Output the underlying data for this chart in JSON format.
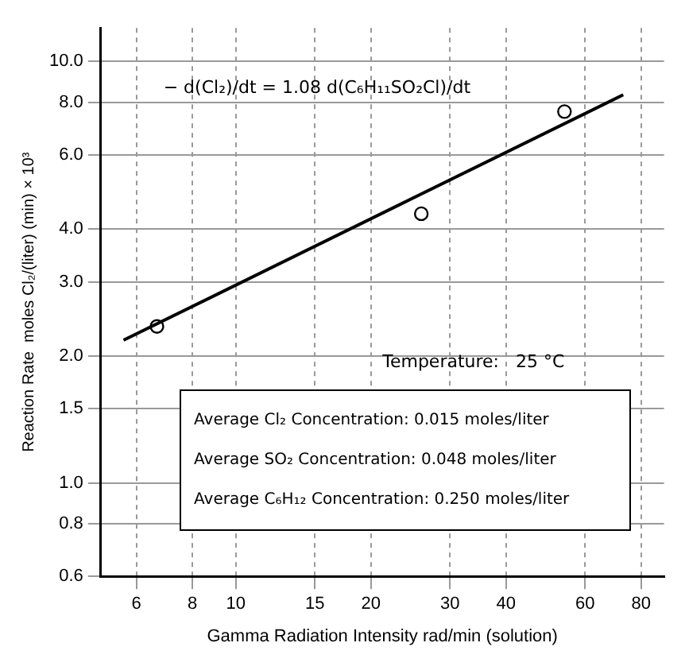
{
  "chart_data": {
    "type": "scatter",
    "xlabel": "Gamma Radiation Intensity rad/min (solution)",
    "ylabel": "Reaction Rate  moles Cl₂/(liter) (min) × 10³",
    "log": "xy",
    "grid": true,
    "legend": false,
    "marker": "circle",
    "xlim": [
      5,
      90
    ],
    "xticks": [
      6,
      8,
      10,
      15,
      20,
      30,
      40,
      60,
      80
    ],
    "ylim": [
      0.6,
      12
    ],
    "yticks": [
      {
        "value": 0.6,
        "label": "0.6"
      },
      {
        "value": 0.8,
        "label": "0.8"
      },
      {
        "value": 1,
        "label": "1.0"
      },
      {
        "value": 1.5,
        "label": "1.5"
      },
      {
        "value": 2,
        "label": "2.0"
      },
      {
        "value": 3,
        "label": "3.0"
      },
      {
        "value": 4,
        "label": "4.0"
      },
      {
        "value": 6,
        "label": "6.0"
      },
      {
        "value": 8,
        "label": "8.0"
      },
      {
        "value": 10,
        "label": "10.0"
      }
    ],
    "series": [
      {
        "color": "#000000",
        "x": [
          6.67,
          25.9,
          54
        ],
        "values": [
          2.35,
          4.35,
          7.6
        ]
      },
      {
        "type": "line",
        "color": "#000000",
        "marker": "none",
        "x": [
          5.62,
          73
        ],
        "values": [
          2.18,
          8.33
        ]
      }
    ],
    "annotations": [
      "− d(Cl₂)/dt = 1.08 d(C₆H₁₁SO₂Cl)/dt",
      "Temperature:   25 °C",
      "Average Cl₂ Concentration:  0.015 moles/liter",
      "Average SO₂ Concentration:  0.048 moles/liter",
      "Average C₆H₁₂ Concentration:  0.250 moles/liter"
    ]
  }
}
